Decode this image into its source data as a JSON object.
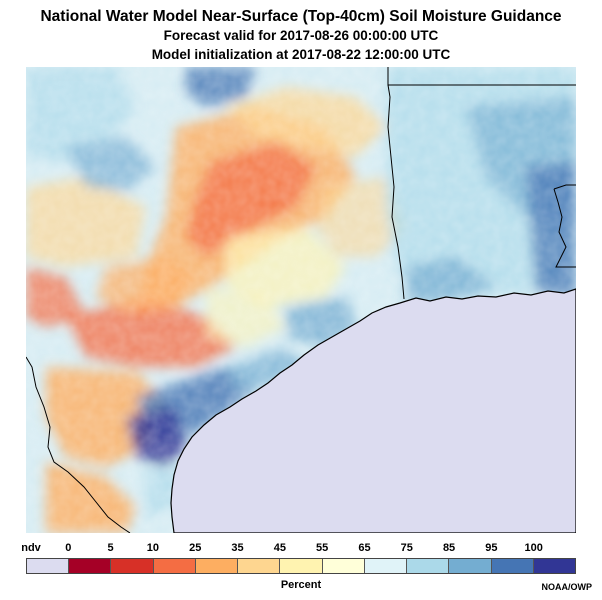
{
  "title": {
    "line1": "National Water Model Near-Surface (Top-40cm) Soil Moisture Guidance",
    "line2": "Forecast valid for 2017-08-26 00:00:00 UTC",
    "line3": "Model initialization at 2017-08-22 12:00:00 UTC"
  },
  "legend": {
    "labels": [
      "ndv",
      "0",
      "5",
      "10",
      "25",
      "35",
      "45",
      "55",
      "65",
      "75",
      "85",
      "95",
      "100"
    ],
    "colors": [
      "#dcdcf0",
      "#a50026",
      "#d73027",
      "#f46d43",
      "#fdae61",
      "#fed690",
      "#fff3b0",
      "#ffffd9",
      "#e0f3f8",
      "#abd9e9",
      "#74add1",
      "#4575b4",
      "#313695"
    ],
    "units": "Percent"
  },
  "credit": "NOAA/OWP",
  "colors": {
    "gulf": "#dcdcf0",
    "border": "#000000"
  }
}
